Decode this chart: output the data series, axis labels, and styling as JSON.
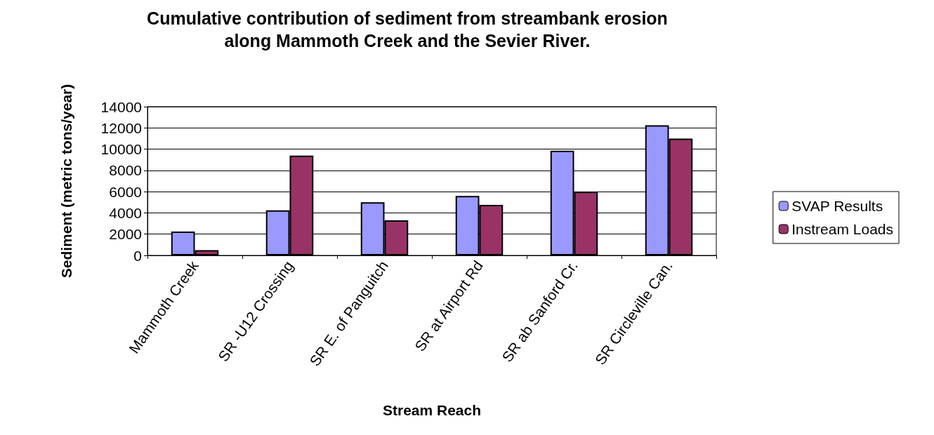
{
  "chart_data": {
    "type": "bar",
    "title": "Cumulative contribution of sediment from streambank erosion\nalong Mammoth Creek and the Sevier River.",
    "xlabel": "Stream Reach",
    "ylabel": "Sediment (metric tons/year)",
    "categories": [
      "Mammoth Creek",
      "SR -U12 Crossing",
      "SR E. of Panguitch",
      "SR at Airport Rd",
      "SR ab Sanford Cr.",
      "SR Circleville Can."
    ],
    "series": [
      {
        "name": "SVAP Results",
        "color": "#9999ff",
        "values": [
          2250,
          4250,
          5000,
          5600,
          9850,
          12250
        ]
      },
      {
        "name": "Instream Loads",
        "color": "#993366",
        "values": [
          500,
          9400,
          3300,
          4750,
          6000,
          11000
        ]
      }
    ],
    "ylim": [
      0,
      14000
    ],
    "yticks": [
      0,
      2000,
      4000,
      6000,
      8000,
      10000,
      12000,
      14000
    ],
    "grid": "y",
    "legend": "right"
  }
}
